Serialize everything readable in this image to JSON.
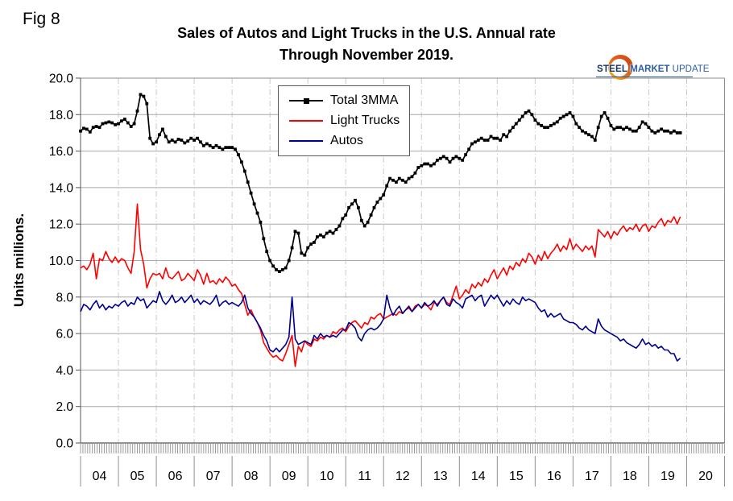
{
  "figure": {
    "fig_label": "Fig 8"
  },
  "title": {
    "line1": "Sales of Autos and Light Trucks in the U.S. Annual rate",
    "line2": "Through November 2019."
  },
  "logo": {
    "word1": "STEEL",
    "word2": "MARKET",
    "word3": "UPDATE"
  },
  "chart_data": {
    "type": "line",
    "title": "Sales of Autos and Light Trucks in the U.S. Annual rate Through November 2019.",
    "xlabel": "",
    "ylabel": "Units millions.",
    "ylim": [
      0,
      20
    ],
    "y_tick_step": 2,
    "y_tick_labels": [
      "0.0",
      "2.0",
      "4.0",
      "6.0",
      "8.0",
      "10.0",
      "12.0",
      "14.0",
      "16.0",
      "18.0",
      "20.0"
    ],
    "x_year_labels": [
      "04",
      "05",
      "06",
      "07",
      "08",
      "09",
      "10",
      "11",
      "12",
      "13",
      "14",
      "15",
      "16",
      "17",
      "18",
      "19",
      "20"
    ],
    "x_range": "monthly, January 2004 through November 2019",
    "grid": {
      "horizontal": "solid gray",
      "vertical": "dash-dot gray at year boundaries"
    },
    "legend": {
      "position": "top-center",
      "entries": [
        "Total 3MMA",
        "Light Trucks",
        "Autos"
      ]
    },
    "colors": {
      "total": "#000000",
      "light_trucks": "#ff0000",
      "autos": "#00008f"
    },
    "series": [
      {
        "name": "Total 3MMA",
        "color": "#000000",
        "marker": "square",
        "values": [
          17.1,
          17.25,
          17.2,
          17.05,
          17.3,
          17.35,
          17.3,
          17.5,
          17.55,
          17.6,
          17.55,
          17.45,
          17.5,
          17.65,
          17.75,
          17.55,
          17.35,
          17.5,
          18.2,
          19.1,
          19.0,
          18.6,
          16.7,
          16.4,
          16.5,
          16.9,
          17.2,
          16.8,
          16.5,
          16.6,
          16.5,
          16.65,
          16.6,
          16.45,
          16.55,
          16.7,
          16.6,
          16.7,
          16.5,
          16.3,
          16.4,
          16.3,
          16.2,
          16.3,
          16.2,
          16.1,
          16.2,
          16.2,
          16.2,
          16.1,
          15.8,
          15.4,
          14.9,
          14.3,
          13.7,
          13.1,
          12.6,
          12.1,
          11.2,
          10.5,
          10.0,
          9.7,
          9.5,
          9.4,
          9.5,
          9.6,
          10.0,
          10.7,
          11.6,
          11.5,
          10.4,
          10.3,
          10.7,
          10.9,
          11.0,
          11.3,
          11.4,
          11.3,
          11.5,
          11.6,
          11.5,
          11.7,
          11.9,
          12.3,
          12.5,
          12.9,
          13.1,
          13.3,
          12.9,
          12.2,
          11.9,
          12.1,
          12.5,
          12.9,
          13.2,
          13.4,
          13.6,
          14.1,
          14.5,
          14.4,
          14.3,
          14.5,
          14.4,
          14.3,
          14.5,
          14.6,
          14.8,
          15.1,
          15.2,
          15.3,
          15.3,
          15.2,
          15.3,
          15.5,
          15.6,
          15.7,
          15.6,
          15.4,
          15.6,
          15.7,
          15.6,
          15.5,
          15.8,
          16.1,
          16.4,
          16.5,
          16.6,
          16.7,
          16.6,
          16.6,
          16.8,
          16.7,
          16.7,
          16.6,
          16.9,
          16.8,
          17.1,
          17.3,
          17.5,
          17.7,
          17.9,
          18.1,
          18.2,
          18.0,
          17.7,
          17.5,
          17.4,
          17.3,
          17.3,
          17.4,
          17.5,
          17.6,
          17.8,
          17.9,
          18.0,
          18.1,
          17.9,
          17.5,
          17.3,
          17.1,
          17.0,
          16.9,
          16.8,
          16.6,
          17.3,
          17.9,
          18.1,
          17.8,
          17.4,
          17.2,
          17.3,
          17.3,
          17.2,
          17.3,
          17.2,
          17.1,
          17.1,
          17.3,
          17.6,
          17.5,
          17.3,
          17.1,
          17.0,
          17.1,
          17.2,
          17.1,
          17.1,
          17.0,
          17.1,
          17.0,
          17.0
        ]
      },
      {
        "name": "Light Trucks",
        "color": "#ff0000",
        "marker": "none",
        "values": [
          9.6,
          9.7,
          9.5,
          9.8,
          10.4,
          9.0,
          10.1,
          10.0,
          10.5,
          10.1,
          9.9,
          10.2,
          9.9,
          10.1,
          10.0,
          9.6,
          9.3,
          10.5,
          13.1,
          10.6,
          9.8,
          8.5,
          9.0,
          9.3,
          9.2,
          9.3,
          9.0,
          9.6,
          9.1,
          9.0,
          9.2,
          9.4,
          8.9,
          9.0,
          9.3,
          9.1,
          8.9,
          9.5,
          9.2,
          8.7,
          9.3,
          8.8,
          8.9,
          8.7,
          9.0,
          8.8,
          9.1,
          8.9,
          8.6,
          8.7,
          8.4,
          8.2,
          7.6,
          7.0,
          7.3,
          6.9,
          6.6,
          6.2,
          5.5,
          5.2,
          4.9,
          4.7,
          4.8,
          4.6,
          4.5,
          4.9,
          5.4,
          5.9,
          4.2,
          5.3,
          5.0,
          5.6,
          5.4,
          5.3,
          5.7,
          5.6,
          5.8,
          5.7,
          5.9,
          5.8,
          6.1,
          6.0,
          6.2,
          6.3,
          6.1,
          6.4,
          6.6,
          6.7,
          6.5,
          6.3,
          6.6,
          6.5,
          6.9,
          6.8,
          7.0,
          7.1,
          6.8,
          6.9,
          7.0,
          7.1,
          7.0,
          7.2,
          7.1,
          7.3,
          7.4,
          7.2,
          7.5,
          7.6,
          7.4,
          7.6,
          7.5,
          7.3,
          7.7,
          7.6,
          7.8,
          8.0,
          7.7,
          7.6,
          8.1,
          8.6,
          7.9,
          8.1,
          8.4,
          8.2,
          8.7,
          8.5,
          8.8,
          8.6,
          9.0,
          8.8,
          9.2,
          9.5,
          9.0,
          9.3,
          9.6,
          9.2,
          9.7,
          9.5,
          9.9,
          9.7,
          10.1,
          9.9,
          10.4,
          10.2,
          9.8,
          10.3,
          10.0,
          10.5,
          10.1,
          10.4,
          10.6,
          10.9,
          10.5,
          10.8,
          10.6,
          11.2,
          10.6,
          10.9,
          10.7,
          10.5,
          10.8,
          10.6,
          10.8,
          10.2,
          11.7,
          11.5,
          11.3,
          11.6,
          11.2,
          11.6,
          11.4,
          11.7,
          11.9,
          11.6,
          11.8,
          11.7,
          12.0,
          11.6,
          11.9,
          12.0,
          11.6,
          11.9,
          11.8,
          12.1,
          12.3,
          11.9,
          12.2,
          12.1,
          12.4,
          12.0,
          12.4
        ]
      },
      {
        "name": "Autos",
        "color": "#00008f",
        "marker": "none",
        "values": [
          7.2,
          7.6,
          7.5,
          7.3,
          7.6,
          7.8,
          7.4,
          7.6,
          7.3,
          7.5,
          7.4,
          7.6,
          7.5,
          7.7,
          7.8,
          7.5,
          7.7,
          7.6,
          8.0,
          7.8,
          7.9,
          7.4,
          7.6,
          7.8,
          7.7,
          8.3,
          7.8,
          7.6,
          7.8,
          8.1,
          7.7,
          7.8,
          8.0,
          7.7,
          7.9,
          8.1,
          7.7,
          7.9,
          7.6,
          7.8,
          7.7,
          7.6,
          7.8,
          8.1,
          7.5,
          7.7,
          7.8,
          7.6,
          7.7,
          7.6,
          7.5,
          7.7,
          8.1,
          7.4,
          7.1,
          6.9,
          6.6,
          6.3,
          5.9,
          5.6,
          5.1,
          5.0,
          5.2,
          5.0,
          5.2,
          5.4,
          5.8,
          8.0,
          5.7,
          5.4,
          5.5,
          5.6,
          5.5,
          5.4,
          5.9,
          5.7,
          6.0,
          5.8,
          5.9,
          5.8,
          5.9,
          5.8,
          6.0,
          6.2,
          6.2,
          6.6,
          6.5,
          6.3,
          5.8,
          5.6,
          6.0,
          6.2,
          6.3,
          6.2,
          6.3,
          6.5,
          6.8,
          8.1,
          7.4,
          7.0,
          7.3,
          7.5,
          7.1,
          7.3,
          7.5,
          7.2,
          7.4,
          7.6,
          7.4,
          7.7,
          7.5,
          7.6,
          7.8,
          7.5,
          7.8,
          8.0,
          7.6,
          7.5,
          7.9,
          7.7,
          7.6,
          7.4,
          7.9,
          8.0,
          8.1,
          7.8,
          8.0,
          8.1,
          7.5,
          7.8,
          8.1,
          7.9,
          8.1,
          7.8,
          7.5,
          7.8,
          7.6,
          7.9,
          7.7,
          7.6,
          8.0,
          7.8,
          7.9,
          7.8,
          7.7,
          7.4,
          7.2,
          7.3,
          6.9,
          7.1,
          6.9,
          7.0,
          7.1,
          6.8,
          6.7,
          6.6,
          6.6,
          6.5,
          6.3,
          6.2,
          6.4,
          6.2,
          6.1,
          6.0,
          6.8,
          6.4,
          6.2,
          6.1,
          6.0,
          5.9,
          5.8,
          5.6,
          5.7,
          5.5,
          5.4,
          5.3,
          5.2,
          5.4,
          5.7,
          5.4,
          5.5,
          5.3,
          5.4,
          5.2,
          5.3,
          5.1,
          5.1,
          4.9,
          4.9,
          4.5,
          4.65
        ]
      }
    ]
  }
}
